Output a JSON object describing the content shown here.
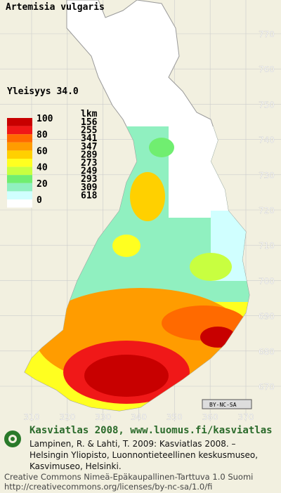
{
  "title": "Artemisia vulgaris",
  "frequency": "Yleisyys  34.0",
  "legend": {
    "percent_labels": [
      "100",
      "80",
      "60",
      "40",
      "20",
      "0"
    ],
    "count_header": "lkm",
    "counts": [
      "156",
      "255",
      "341",
      "347",
      "289",
      "273",
      "249",
      "293",
      "309",
      "618"
    ],
    "colors": [
      "#c80000",
      "#f01818",
      "#ff6a00",
      "#ff9c00",
      "#ffd000",
      "#ffff20",
      "#c8ff40",
      "#70ee70",
      "#90f0c0",
      "#d0ffff"
    ]
  },
  "yticks": [
    770,
    760,
    750,
    740,
    730,
    720,
    710,
    700,
    690,
    680,
    670
  ],
  "xticks": [
    310,
    320,
    330,
    340,
    350,
    360,
    370
  ],
  "badge": "BY-NC-SA",
  "footer": {
    "heading": "Kasviatlas 2008, www.luomus.fi/kasviatlas",
    "citation": [
      "Lampinen, R. & Lahti, T. 2009: Kasviatlas 2008. –",
      "Helsingin Yliopisto, Luonnontieteellinen keskusmuseo,",
      "Kasvimuseo, Helsinki."
    ],
    "license": [
      "Creative Commons Nimeä-Epäkaupallinen-Tarttuva 1.0 Suomi",
      "http://creativecommons.org/licenses/by-nc-sa/1.0/fi"
    ]
  }
}
